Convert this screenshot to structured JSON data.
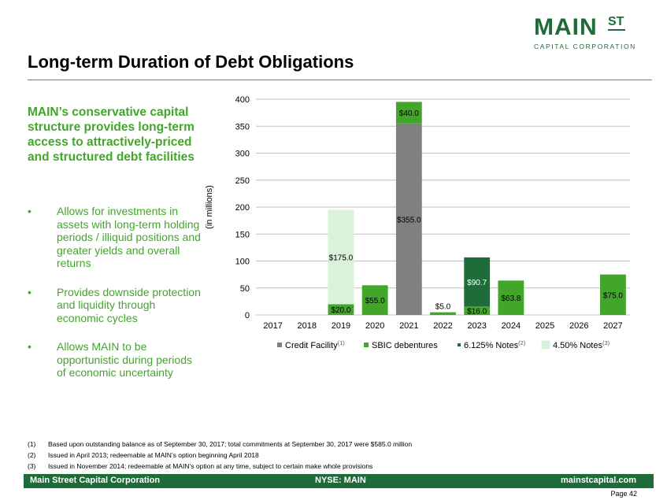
{
  "logo": {
    "main": "MAIN",
    "st": "ST",
    "sub": "CAPITAL CORPORATION"
  },
  "title": "Long-term Duration of Debt Obligations",
  "lead": "MAIN’s conservative capital structure provides long-term access to attractively-priced and structured debt facilities",
  "bullets": [
    "Allows for investments in assets with long-term holding periods / illiquid positions and greater yields and overall returns",
    "Provides downside protection and liquidity through economic cycles",
    "Allows MAIN to be opportunistic during periods of economic uncertainty"
  ],
  "bullet_glyph": "•",
  "chart_data": {
    "type": "bar",
    "stacked": true,
    "categories": [
      "2017",
      "2018",
      "2019",
      "2020",
      "2021",
      "2022",
      "2023",
      "2024",
      "2025",
      "2026",
      "2027"
    ],
    "ylabel": "(in millions)",
    "ylim": [
      0,
      400
    ],
    "yticks": [
      "0",
      "50",
      "100",
      "150",
      "200",
      "250",
      "300",
      "350",
      "400"
    ],
    "grid": true,
    "legend_position": "bottom",
    "series": [
      {
        "name": "Credit Facility",
        "sup": "(1)",
        "color": "#808080",
        "values": [
          0,
          0,
          0,
          0,
          355.0,
          0,
          0,
          0,
          0,
          0,
          0
        ]
      },
      {
        "name": "SBIC debentures",
        "sup": "",
        "color": "#41a62a",
        "values": [
          0,
          0,
          20.0,
          55.0,
          40.0,
          5.0,
          16.0,
          63.8,
          0,
          0,
          75.0
        ]
      },
      {
        "name": "6.125% Notes",
        "sup": "(2)",
        "color": "#1f6b3a",
        "values": [
          0,
          0,
          0,
          0,
          0,
          0,
          90.7,
          0,
          0,
          0,
          0
        ]
      },
      {
        "name": "4.50% Notes",
        "sup": "(3)",
        "color": "#d9f2d9",
        "values": [
          0,
          0,
          175.0,
          0,
          0,
          0,
          0,
          0,
          0,
          0,
          0
        ]
      }
    ],
    "data_labels": [
      {
        "series": 1,
        "category": "2019",
        "text": "$20.0"
      },
      {
        "series": 3,
        "category": "2019",
        "text": "$175.0"
      },
      {
        "series": 1,
        "category": "2020",
        "text": "$55.0"
      },
      {
        "series": 0,
        "category": "2021",
        "text": "$355.0"
      },
      {
        "series": 1,
        "category": "2021",
        "text": "$40.0"
      },
      {
        "series": 1,
        "category": "2022",
        "text": "$5.0"
      },
      {
        "series": 1,
        "category": "2023",
        "text": "$16.0"
      },
      {
        "series": 2,
        "category": "2023",
        "text": "$90.7"
      },
      {
        "series": 1,
        "category": "2024",
        "text": "$63.8"
      },
      {
        "series": 1,
        "category": "2027",
        "text": "$75.0"
      }
    ]
  },
  "footnotes": [
    {
      "num": "(1)",
      "text": "Based upon outstanding balance as of September 30, 2017; total commitments at September 30, 2017 were $585.0 million"
    },
    {
      "num": "(2)",
      "text": "Issued in April 2013; redeemable at MAIN’s option beginning April 2018"
    },
    {
      "num": "(3)",
      "text": "Issued in November 2014; redeemable at MAIN’s option at any time, subject to certain make whole provisions"
    }
  ],
  "footer": {
    "left": "Main Street Capital Corporation",
    "mid": "NYSE: MAIN",
    "right": "mainstcapital.com"
  },
  "page_label": "Page  42"
}
